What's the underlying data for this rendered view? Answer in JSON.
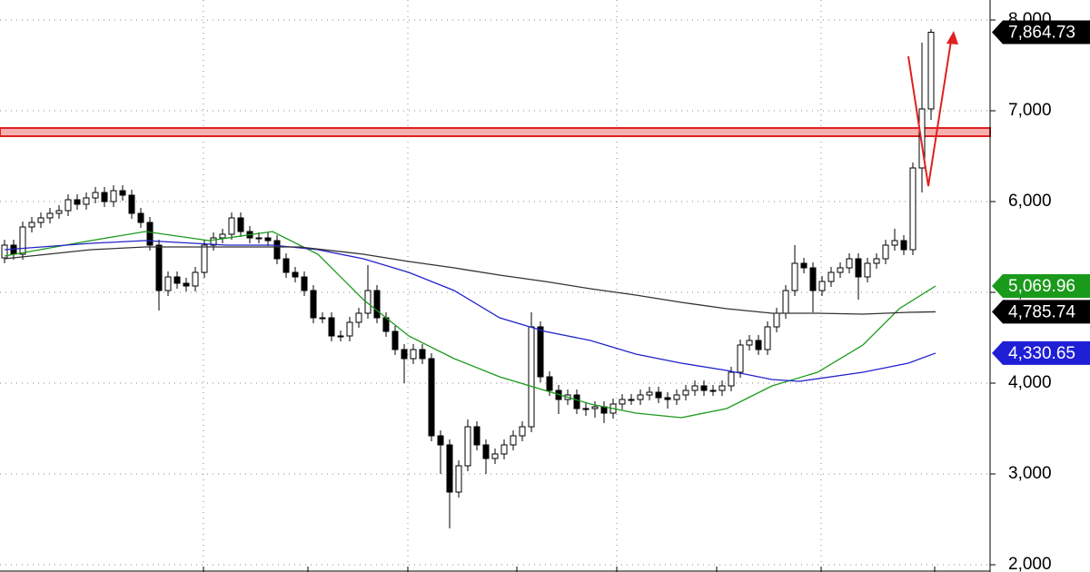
{
  "chart_data": {
    "type": "candlestick",
    "ohlc": {
      "open": [
        5380,
        5520,
        5420,
        5720,
        5770,
        5820,
        5870,
        5900,
        6020,
        5970,
        6040,
        6100,
        6000,
        6120,
        6070,
        5870,
        5770,
        5520,
        5020,
        5170,
        5100,
        5070,
        5220,
        5520,
        5600,
        5640,
        5820,
        5670,
        5600,
        5600,
        5570,
        5370,
        5220,
        5170,
        5020,
        4720,
        4720,
        4520,
        4520,
        4670,
        4770,
        5020,
        4720,
        4570,
        4370,
        4270,
        4370,
        4270,
        3420,
        3320,
        2800,
        3090,
        3520,
        3320,
        3170,
        3220,
        3320,
        3420,
        3520,
        4620,
        4070,
        3920,
        3820,
        3870,
        3720,
        3720,
        3740,
        3670,
        3770,
        3820,
        3820,
        3870,
        3900,
        3840,
        3820,
        3870,
        3920,
        3970,
        3920,
        3920,
        3970,
        4120,
        4420,
        4470,
        4370,
        4620,
        4770,
        5020,
        5320,
        5270,
        5020,
        5120,
        5220,
        5270,
        5370,
        5170,
        5320,
        5370,
        5520,
        5570,
        5470,
        6370,
        7020
      ],
      "high": [
        5580,
        5580,
        5780,
        5830,
        5880,
        5930,
        5960,
        6080,
        6080,
        6100,
        6160,
        6160,
        6180,
        6180,
        6130,
        5930,
        5830,
        5580,
        5230,
        5230,
        5160,
        5280,
        5580,
        5660,
        5700,
        5880,
        5880,
        5730,
        5660,
        5660,
        5630,
        5430,
        5280,
        5230,
        5080,
        4780,
        4780,
        4580,
        4730,
        4830,
        5300,
        5080,
        4780,
        4630,
        4430,
        4430,
        4430,
        4330,
        3480,
        3380,
        3150,
        3600,
        3580,
        3380,
        3280,
        3380,
        3480,
        3580,
        4780,
        4680,
        4130,
        3980,
        3930,
        3930,
        3780,
        3800,
        3800,
        3830,
        3880,
        3880,
        3930,
        3960,
        3960,
        3900,
        3930,
        3980,
        4030,
        4030,
        3980,
        4030,
        4180,
        4480,
        4530,
        4530,
        4680,
        4830,
        5080,
        5520,
        5380,
        5330,
        5180,
        5280,
        5330,
        5430,
        5430,
        5380,
        5430,
        5580,
        5700,
        5630,
        6430,
        7750,
        7900
      ],
      "low": [
        5320,
        5360,
        5360,
        5660,
        5710,
        5760,
        5810,
        5840,
        5910,
        5910,
        5980,
        5940,
        5940,
        6010,
        5810,
        5710,
        5460,
        4800,
        4960,
        5040,
        5010,
        5010,
        5160,
        5460,
        5540,
        5580,
        5610,
        5540,
        5540,
        5510,
        5310,
        5160,
        5110,
        4960,
        4660,
        4660,
        4460,
        4460,
        4460,
        4610,
        4710,
        4660,
        4510,
        4310,
        4000,
        4210,
        4210,
        3360,
        3000,
        2400,
        2740,
        3030,
        3260,
        3000,
        3110,
        3160,
        3260,
        3360,
        3460,
        4010,
        3860,
        3660,
        3760,
        3660,
        3640,
        3620,
        3560,
        3610,
        3710,
        3760,
        3760,
        3810,
        3780,
        3720,
        3760,
        3810,
        3860,
        3860,
        3860,
        3860,
        3910,
        4060,
        4360,
        4310,
        4310,
        4560,
        4710,
        4960,
        5210,
        4780,
        4960,
        5060,
        5160,
        5210,
        4920,
        5110,
        5260,
        5310,
        5460,
        5410,
        5410,
        6100,
        6900
      ],
      "close": [
        5520,
        5420,
        5720,
        5770,
        5820,
        5870,
        5900,
        6020,
        5970,
        6040,
        6100,
        6000,
        6120,
        6070,
        5870,
        5770,
        5520,
        5020,
        5170,
        5100,
        5070,
        5220,
        5520,
        5600,
        5640,
        5820,
        5670,
        5600,
        5600,
        5570,
        5370,
        5220,
        5170,
        5020,
        4720,
        4720,
        4520,
        4520,
        4670,
        4770,
        5020,
        4720,
        4570,
        4370,
        4270,
        4370,
        4270,
        3420,
        3320,
        2800,
        3090,
        3520,
        3320,
        3170,
        3220,
        3320,
        3420,
        3520,
        4620,
        4070,
        3920,
        3820,
        3870,
        3720,
        3720,
        3740,
        3670,
        3770,
        3820,
        3820,
        3870,
        3900,
        3840,
        3820,
        3870,
        3920,
        3970,
        3920,
        3920,
        3970,
        4120,
        4420,
        4470,
        4370,
        4620,
        4770,
        5020,
        5320,
        5270,
        5020,
        5120,
        5220,
        5270,
        5370,
        5170,
        5320,
        5370,
        5520,
        5570,
        5470,
        6370,
        7020,
        7864.73
      ],
      "up_color": "#ffffff",
      "down_color": "#000000"
    },
    "lines": [
      {
        "color": "#1a9a1a",
        "x": [
          0,
          9.5,
          15.5,
          22.5,
          29.5,
          34.5,
          39.5,
          44.5,
          49.5,
          54.5,
          59.5,
          64.5,
          69.5,
          74.5,
          79.5,
          84.5,
          89.5,
          94.5,
          98.5,
          102.5
        ],
        "values": [
          5400,
          5570,
          5670,
          5570,
          5670,
          5420,
          4920,
          4520,
          4270,
          4070,
          3920,
          3770,
          3670,
          3620,
          3720,
          3970,
          4120,
          4420,
          4820,
          5069.96
        ]
      },
      {
        "color": "#2222cc",
        "x": [
          0,
          9.5,
          15.5,
          24.5,
          29.5,
          34.5,
          39.5,
          44.5,
          49.5,
          54.5,
          59.5,
          64.5,
          69.5,
          74.5,
          79.5,
          84.5,
          87.5,
          94.5,
          99.5,
          102.5
        ],
        "values": [
          5470,
          5540,
          5570,
          5520,
          5520,
          5470,
          5370,
          5220,
          5020,
          4720,
          4570,
          4470,
          4320,
          4220,
          4140,
          4040,
          4020,
          4120,
          4220,
          4330.65
        ]
      },
      {
        "color": "#333333",
        "x": [
          0,
          9.5,
          15.5,
          24.5,
          32.5,
          39.5,
          44.5,
          49.5,
          54.5,
          59.5,
          64.5,
          69.5,
          74.5,
          79.5,
          84.5,
          89.5,
          94.5,
          99.5,
          102.5
        ],
        "values": [
          5370,
          5470,
          5500,
          5500,
          5500,
          5420,
          5340,
          5270,
          5190,
          5120,
          5040,
          4970,
          4890,
          4820,
          4770,
          4770,
          4760,
          4780,
          4785.74
        ]
      }
    ],
    "band": {
      "range": [
        6720,
        6810
      ],
      "color": "#e02020"
    },
    "price_tags": [
      {
        "value": 7864.73,
        "label": "7,864.73",
        "color": "#000000"
      },
      {
        "value": 5069.96,
        "label": "5,069.96",
        "color": "#1a9a1a"
      },
      {
        "value": 4785.74,
        "label": "4,785.74",
        "color": "#000000"
      },
      {
        "value": 4330.65,
        "label": "4,330.65",
        "color": "#1f1fd6"
      }
    ],
    "xlim": [
      -0.5,
      108.5
    ],
    "xticks": [
      21.9,
      33.4,
      44.4,
      56.4,
      67.4,
      78.4,
      89.9,
      102.4
    ],
    "xgrid": [
      21.9,
      44.4,
      67.4,
      89.9
    ],
    "ylim": [
      1920,
      8220
    ],
    "yticks": [
      {
        "value": 2000,
        "label": "2,000"
      },
      {
        "value": 3000,
        "label": "3,000"
      },
      {
        "value": 4000,
        "label": "4,000"
      },
      {
        "value": 5000,
        "label": "5,000"
      },
      {
        "value": 6000,
        "label": "6,000"
      },
      {
        "value": 7000,
        "label": "7,000"
      },
      {
        "value": 8000,
        "label": "8,000"
      }
    ],
    "grid": true
  }
}
